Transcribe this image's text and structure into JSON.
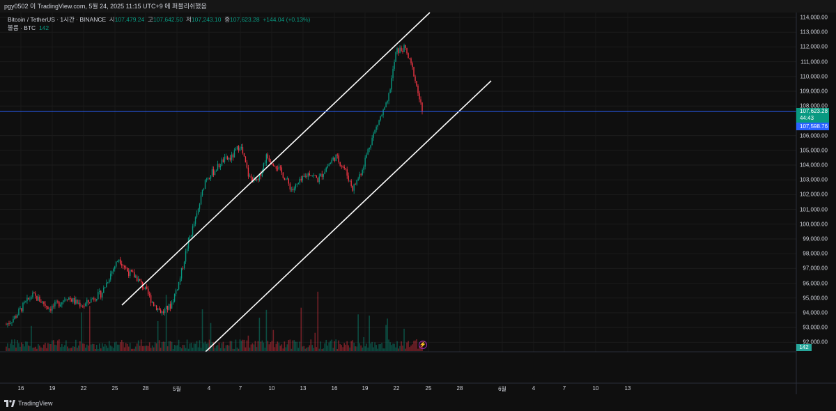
{
  "topbar": {
    "caption": "pgy0502 이 TradingView.com, 5월 24, 2025 11:15 UTC+9 에 퍼블리쉬했음"
  },
  "legend": {
    "symbol": "Bitcoin / TetherUS · 1시간 · BINANCE",
    "open_label": "시",
    "open": "107,479.24",
    "high_label": "고",
    "high": "107,642.50",
    "low_label": "저",
    "low": "107,243.10",
    "close_label": "종",
    "close": "107,623.28",
    "change": "+144.04 (+0.13%)",
    "volume_label": "볼륨 · BTC",
    "volume": "142"
  },
  "price_axis": {
    "ticks": [
      "114,000.00",
      "113,000.00",
      "112,000.00",
      "111,000.00",
      "110,000.00",
      "109,000.00",
      "108,000.00",
      "106,000.00",
      "105,000.00",
      "104,000.00",
      "103,000.00",
      "102,000.00",
      "101,000.00",
      "100,000.00",
      "99,000.00",
      "98,000.00",
      "97,000.00",
      "96,000.00",
      "95,000.00",
      "94,000.00",
      "93,000.00",
      "92,000.00"
    ],
    "tick_values": [
      114000,
      113000,
      112000,
      111000,
      110000,
      109000,
      108000,
      106000,
      105000,
      104000,
      103000,
      102000,
      101000,
      100000,
      99000,
      98000,
      97000,
      96000,
      95000,
      94000,
      93000,
      92000
    ],
    "last_price": "107,623.28",
    "countdown": "44:43",
    "horizontal_line_price": "107,598.76",
    "volume_tag": "142"
  },
  "time_axis": {
    "labels": [
      "16",
      "19",
      "22",
      "25",
      "28",
      "5월",
      "4",
      "7",
      "10",
      "13",
      "16",
      "19",
      "22",
      "25",
      "28",
      "6월",
      "4",
      "7",
      "10",
      "13"
    ]
  },
  "brand": {
    "name": "TradingView"
  },
  "colors": {
    "up": "#089981",
    "down": "#f23645",
    "hline": "#2962ff",
    "channel": "#ffffff",
    "background": "#0f0f0f"
  },
  "chart_data": {
    "type": "candlestick",
    "series_anchor_prices": [
      93200,
      93700,
      94500,
      95200,
      94800,
      94300,
      94600,
      95100,
      94700,
      94500,
      95000,
      95300,
      96600,
      97700,
      96800,
      96400,
      95600,
      94600,
      94000,
      94500,
      96200,
      98800,
      100600,
      103100,
      103600,
      104300,
      104500,
      105400,
      103200,
      102800,
      104600,
      104100,
      103300,
      102300,
      102900,
      103500,
      103000,
      103900,
      104600,
      103800,
      102400,
      103600,
      105500,
      107000,
      108200,
      111700,
      111900,
      110300,
      107623.28
    ],
    "volume_spikes": [
      {
        "time": "1",
        "bars": 1.0
      }
    ],
    "channel_upper": [
      [
        95200,
        "25"
      ],
      [
        114000,
        "25-end"
      ]
    ],
    "ylim": [
      91500,
      114200
    ]
  }
}
